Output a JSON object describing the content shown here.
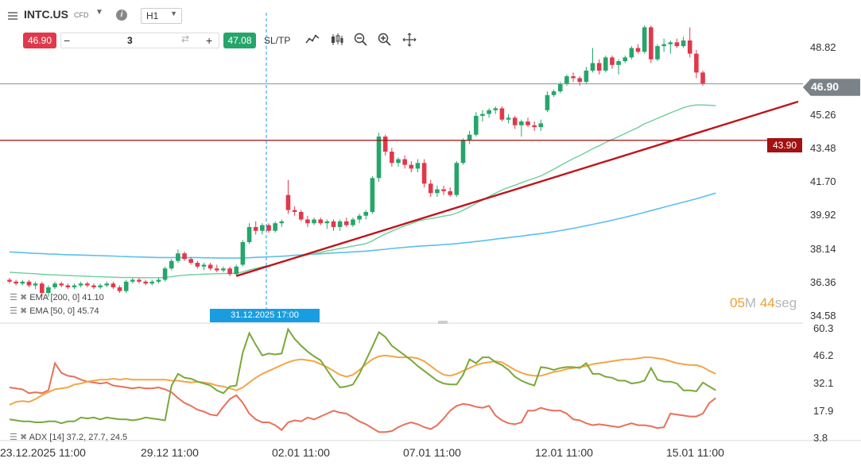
{
  "header": {
    "symbol": "INTC.US",
    "symbol_type": "CFD",
    "timeframe": "H1",
    "sell_price": "46.90",
    "quantity": "3",
    "buy_price": "47.08",
    "sltp_label": "SL/TP",
    "icons": [
      "line-chart-icon",
      "candlestick-icon",
      "zoom-out-icon",
      "zoom-in-icon",
      "crosshair-icon"
    ]
  },
  "timer": {
    "minutes": "05",
    "min_unit": "M",
    "seconds": "44",
    "sec_unit": "seg"
  },
  "price_axis": {
    "ticks": [
      "48.82",
      "45.26",
      "43.48",
      "41.70",
      "39.92",
      "38.14",
      "36.36",
      "34.58"
    ],
    "current_price": "46.90",
    "level_price": "43.90"
  },
  "indicator_axis": {
    "ticks": [
      "60.3",
      "46.2",
      "32.1",
      "17.9",
      "3.8"
    ]
  },
  "time_axis": {
    "ticks": [
      "23.12.2025 11:00",
      "29.12 11:00",
      "02.01 11:00",
      "07.01 11:00",
      "12.01 11:00",
      "15.01 11:00"
    ]
  },
  "crosshair_date": "31.12.2025 17:00",
  "legends": {
    "ema200": "EMA [200, 0] 41.10",
    "ema50": "EMA [50, 0] 45.74",
    "adx": "ADX [14] 37.2, 27.7, 24.5"
  },
  "colors": {
    "up": "#26a56a",
    "down": "#e0394b",
    "ema200": "#5bc0eb",
    "ema50": "#6ccf9a",
    "trendline": "#c0141c",
    "level": "#a31111",
    "adx": "#7aa83a",
    "di_plus": "#f2a646",
    "di_minus": "#e8705a",
    "accent_blue": "#1a9de0"
  },
  "chart_data": {
    "type": "candlestick",
    "ylim": [
      34.58,
      50.0
    ],
    "candles": [
      [
        36.5,
        36.6,
        36.3,
        36.4
      ],
      [
        36.4,
        36.5,
        36.2,
        36.3
      ],
      [
        36.3,
        36.5,
        36.2,
        36.4
      ],
      [
        36.4,
        36.5,
        36.1,
        36.2
      ],
      [
        36.2,
        36.4,
        36.0,
        36.3
      ],
      [
        36.3,
        36.4,
        35.6,
        35.8
      ],
      [
        35.8,
        36.2,
        35.6,
        36.1
      ],
      [
        36.1,
        36.4,
        36.0,
        36.3
      ],
      [
        36.3,
        36.4,
        36.1,
        36.2
      ],
      [
        36.2,
        36.3,
        36.0,
        36.1
      ],
      [
        36.1,
        36.3,
        36.0,
        36.2
      ],
      [
        36.2,
        36.4,
        36.1,
        36.3
      ],
      [
        36.3,
        36.4,
        36.1,
        36.2
      ],
      [
        36.2,
        36.3,
        36.0,
        36.1
      ],
      [
        36.1,
        36.3,
        36.0,
        36.2
      ],
      [
        36.2,
        36.4,
        36.1,
        36.3
      ],
      [
        36.3,
        36.4,
        36.0,
        36.1
      ],
      [
        36.1,
        36.2,
        35.8,
        35.9
      ],
      [
        35.9,
        36.5,
        35.8,
        36.4
      ],
      [
        36.4,
        36.6,
        36.3,
        36.5
      ],
      [
        36.5,
        36.6,
        36.3,
        36.4
      ],
      [
        36.4,
        36.5,
        36.2,
        36.3
      ],
      [
        36.3,
        36.5,
        36.2,
        36.4
      ],
      [
        36.4,
        36.6,
        36.3,
        36.5
      ],
      [
        36.5,
        37.2,
        36.4,
        37.1
      ],
      [
        37.1,
        37.6,
        37.0,
        37.5
      ],
      [
        37.5,
        38.1,
        37.4,
        37.9
      ],
      [
        37.9,
        38.0,
        37.5,
        37.6
      ],
      [
        37.6,
        37.7,
        37.3,
        37.4
      ],
      [
        37.4,
        37.5,
        37.1,
        37.2
      ],
      [
        37.2,
        37.4,
        37.0,
        37.3
      ],
      [
        37.3,
        37.4,
        37.0,
        37.1
      ],
      [
        37.1,
        37.3,
        36.9,
        37.0
      ],
      [
        37.0,
        37.2,
        36.9,
        37.1
      ],
      [
        37.1,
        37.2,
        36.7,
        36.8
      ],
      [
        36.8,
        37.3,
        36.7,
        37.2
      ],
      [
        37.3,
        38.6,
        37.2,
        38.5
      ],
      [
        38.5,
        39.5,
        38.4,
        39.3
      ],
      [
        39.3,
        39.6,
        38.9,
        39.1
      ],
      [
        39.1,
        39.5,
        38.9,
        39.4
      ],
      [
        39.4,
        39.5,
        39.0,
        39.1
      ],
      [
        39.1,
        39.6,
        39.0,
        39.5
      ],
      [
        39.5,
        39.7,
        39.3,
        39.6
      ],
      [
        41.0,
        41.8,
        40.0,
        40.2
      ],
      [
        40.2,
        40.4,
        39.9,
        40.1
      ],
      [
        40.1,
        40.2,
        39.6,
        39.7
      ],
      [
        39.7,
        39.9,
        39.3,
        39.5
      ],
      [
        39.5,
        39.8,
        39.4,
        39.7
      ],
      [
        39.7,
        39.8,
        39.4,
        39.5
      ],
      [
        39.5,
        39.7,
        39.2,
        39.6
      ],
      [
        39.6,
        39.7,
        39.1,
        39.3
      ],
      [
        39.3,
        39.7,
        39.1,
        39.6
      ],
      [
        39.6,
        39.8,
        39.3,
        39.4
      ],
      [
        39.4,
        39.8,
        39.3,
        39.7
      ],
      [
        39.7,
        40.0,
        39.5,
        39.9
      ],
      [
        39.9,
        40.2,
        39.7,
        40.1
      ],
      [
        40.1,
        42.0,
        40.0,
        41.9
      ],
      [
        41.9,
        44.3,
        41.7,
        44.1
      ],
      [
        44.1,
        44.2,
        43.1,
        43.3
      ],
      [
        43.3,
        43.5,
        42.5,
        42.7
      ],
      [
        42.7,
        43.0,
        42.5,
        42.9
      ],
      [
        42.9,
        43.1,
        42.4,
        42.6
      ],
      [
        42.6,
        42.8,
        42.2,
        42.4
      ],
      [
        42.4,
        42.9,
        42.2,
        42.7
      ],
      [
        42.7,
        42.9,
        41.4,
        41.6
      ],
      [
        41.6,
        41.8,
        40.9,
        41.1
      ],
      [
        41.1,
        41.5,
        40.9,
        41.3
      ],
      [
        41.3,
        41.5,
        41.0,
        41.2
      ],
      [
        41.2,
        41.4,
        40.9,
        41.0
      ],
      [
        41.0,
        42.8,
        40.9,
        42.7
      ],
      [
        42.7,
        44.0,
        42.6,
        43.9
      ],
      [
        43.9,
        44.4,
        43.7,
        44.2
      ],
      [
        44.2,
        45.4,
        44.1,
        45.2
      ],
      [
        45.2,
        45.5,
        44.9,
        45.3
      ],
      [
        45.3,
        45.6,
        45.1,
        45.5
      ],
      [
        45.5,
        45.7,
        45.3,
        45.6
      ],
      [
        45.6,
        45.7,
        44.9,
        45.0
      ],
      [
        45.0,
        45.3,
        44.8,
        45.1
      ],
      [
        45.1,
        45.2,
        44.5,
        44.7
      ],
      [
        44.7,
        45.0,
        44.1,
        44.9
      ],
      [
        44.9,
        45.1,
        44.6,
        44.7
      ],
      [
        44.7,
        44.9,
        44.4,
        44.6
      ],
      [
        44.6,
        45.0,
        44.4,
        44.8
      ],
      [
        45.5,
        46.5,
        45.4,
        46.3
      ],
      [
        46.3,
        46.6,
        46.2,
        46.5
      ],
      [
        46.5,
        47.0,
        46.4,
        46.9
      ],
      [
        46.9,
        47.4,
        46.8,
        47.3
      ],
      [
        47.3,
        47.5,
        47.0,
        47.2
      ],
      [
        47.2,
        47.3,
        46.8,
        47.0
      ],
      [
        47.0,
        47.8,
        46.9,
        47.6
      ],
      [
        47.6,
        48.8,
        47.5,
        48.0
      ],
      [
        48.0,
        48.2,
        47.4,
        47.6
      ],
      [
        47.6,
        48.4,
        47.5,
        48.3
      ],
      [
        48.3,
        48.4,
        47.7,
        47.9
      ],
      [
        47.9,
        48.2,
        47.4,
        48.1
      ],
      [
        48.1,
        48.4,
        48.0,
        48.3
      ],
      [
        48.3,
        48.9,
        48.2,
        48.8
      ],
      [
        48.8,
        49.0,
        48.5,
        48.6
      ],
      [
        48.6,
        50.0,
        48.5,
        49.9
      ],
      [
        49.9,
        50.0,
        48.0,
        48.2
      ],
      [
        48.2,
        49.0,
        48.1,
        48.9
      ],
      [
        48.9,
        49.3,
        48.6,
        49.0
      ],
      [
        49.0,
        49.2,
        48.5,
        49.1
      ],
      [
        49.1,
        49.3,
        48.8,
        48.9
      ],
      [
        48.9,
        49.4,
        48.8,
        49.2
      ],
      [
        49.2,
        49.9,
        48.3,
        48.5
      ],
      [
        48.5,
        48.7,
        47.2,
        47.5
      ],
      [
        47.5,
        47.6,
        46.8,
        46.9
      ]
    ],
    "ema200": [
      37.98,
      37.96,
      37.94,
      37.92,
      37.9,
      37.89,
      37.87,
      37.86,
      37.84,
      37.83,
      37.82,
      37.81,
      37.8,
      37.79,
      37.78,
      37.77,
      37.76,
      37.74,
      37.73,
      37.72,
      37.71,
      37.7,
      37.69,
      37.68,
      37.68,
      37.68,
      37.68,
      37.68,
      37.68,
      37.68,
      37.67,
      37.67,
      37.66,
      37.66,
      37.65,
      37.65,
      37.66,
      37.67,
      37.69,
      37.7,
      37.72,
      37.73,
      37.75,
      37.77,
      37.8,
      37.82,
      37.84,
      37.86,
      37.88,
      37.9,
      37.92,
      37.94,
      37.96,
      37.98,
      38.0,
      38.02,
      38.05,
      38.09,
      38.12,
      38.16,
      38.19,
      38.22,
      38.25,
      38.28,
      38.3,
      38.32,
      38.34,
      38.37,
      38.39,
      38.42,
      38.46,
      38.49,
      38.53,
      38.57,
      38.61,
      38.66,
      38.7,
      38.74,
      38.78,
      38.82,
      38.87,
      38.91,
      38.95,
      39.0,
      39.05,
      39.11,
      39.17,
      39.23,
      39.3,
      39.37,
      39.44,
      39.51,
      39.58,
      39.66,
      39.74,
      39.82,
      39.9,
      39.99,
      40.08,
      40.17,
      40.26,
      40.35,
      40.44,
      40.53,
      40.62,
      40.71,
      40.8,
      40.9,
      41.0,
      41.1
    ],
    "ema50": [
      36.9,
      36.88,
      36.86,
      36.84,
      36.82,
      36.79,
      36.77,
      36.76,
      36.74,
      36.73,
      36.71,
      36.7,
      36.69,
      36.67,
      36.66,
      36.65,
      36.64,
      36.62,
      36.62,
      36.62,
      36.61,
      36.61,
      36.61,
      36.61,
      36.63,
      36.66,
      36.71,
      36.74,
      36.77,
      36.78,
      36.8,
      36.81,
      36.82,
      36.83,
      36.83,
      36.85,
      36.92,
      37.02,
      37.1,
      37.19,
      37.26,
      37.35,
      37.44,
      37.55,
      37.65,
      37.74,
      37.81,
      37.89,
      37.96,
      38.03,
      38.09,
      38.16,
      38.22,
      38.29,
      38.35,
      38.42,
      38.56,
      38.76,
      38.93,
      39.08,
      39.23,
      39.36,
      39.48,
      39.61,
      39.69,
      39.75,
      39.81,
      39.88,
      39.93,
      40.04,
      40.19,
      40.36,
      40.55,
      40.73,
      40.92,
      41.1,
      41.26,
      41.4,
      41.52,
      41.65,
      41.78,
      41.89,
      42.01,
      42.19,
      42.37,
      42.56,
      42.75,
      42.93,
      43.09,
      43.27,
      43.46,
      43.61,
      43.79,
      43.94,
      44.1,
      44.26,
      44.43,
      44.58,
      44.78,
      44.92,
      45.07,
      45.21,
      45.36,
      45.49,
      45.63,
      45.73,
      45.78,
      45.78,
      45.76,
      45.74
    ],
    "trendline": {
      "start_index": 35,
      "start_price": 36.7,
      "end_index": 111,
      "end_price": 46.2
    },
    "level_line": 43.9,
    "adx_ylim": [
      3.8,
      60.3
    ],
    "adx": [
      13.5,
      13.0,
      12.5,
      12.5,
      12.0,
      12.0,
      12.5,
      12.5,
      11.5,
      12.5,
      12.5,
      14.5,
      14.0,
      14.5,
      13.5,
      14.5,
      14.0,
      13.5,
      13.5,
      13.0,
      13.5,
      14.5,
      14.0,
      13.5,
      13.0,
      31.0,
      37.0,
      35.0,
      34.5,
      33.0,
      32.0,
      31.0,
      28.5,
      27.0,
      30.5,
      31.0,
      48.0,
      58.0,
      52.0,
      46.5,
      47.5,
      47.0,
      47.5,
      60.0,
      55.0,
      51.5,
      48.5,
      46.0,
      44.0,
      39.0,
      34.0,
      30.0,
      30.5,
      31.5,
      37.0,
      44.0,
      51.0,
      58.5,
      56.0,
      51.5,
      49.0,
      46.5,
      44.0,
      41.0,
      38.5,
      36.0,
      33.5,
      32.0,
      31.5,
      31.5,
      36.5,
      44.5,
      42.5,
      45.5,
      45.5,
      43.0,
      41.5,
      39.0,
      35.5,
      33.5,
      32.0,
      31.0,
      40.5,
      40.0,
      39.0,
      40.0,
      40.5,
      40.5,
      40.0,
      42.5,
      37.0,
      37.0,
      35.5,
      35.0,
      33.5,
      33.5,
      32.0,
      32.5,
      33.5,
      40.0,
      34.0,
      33.0,
      33.0,
      32.0,
      28.5,
      28.5,
      28.0,
      32.5,
      30.5,
      28.5
    ],
    "di_plus": [
      21.0,
      22.5,
      23.0,
      22.5,
      24.0,
      26.0,
      27.5,
      29.0,
      29.5,
      30.0,
      31.5,
      32.0,
      33.0,
      33.5,
      34.0,
      34.0,
      34.5,
      34.0,
      34.5,
      34.0,
      34.0,
      34.0,
      34.0,
      34.0,
      34.0,
      33.5,
      33.5,
      33.0,
      32.5,
      33.0,
      32.5,
      32.0,
      31.0,
      30.5,
      29.5,
      28.5,
      30.0,
      32.5,
      35.0,
      37.0,
      38.5,
      40.0,
      41.5,
      43.0,
      44.0,
      44.5,
      44.0,
      43.5,
      42.0,
      40.5,
      38.5,
      36.5,
      35.5,
      36.5,
      39.0,
      42.0,
      44.5,
      46.0,
      46.5,
      46.0,
      45.5,
      45.5,
      45.5,
      45.0,
      43.5,
      41.0,
      38.5,
      36.5,
      36.0,
      37.0,
      38.5,
      40.0,
      41.5,
      42.5,
      43.0,
      43.5,
      43.0,
      41.0,
      39.0,
      37.5,
      36.5,
      36.0,
      36.0,
      37.0,
      38.0,
      38.5,
      39.5,
      40.0,
      40.5,
      41.0,
      42.0,
      42.5,
      43.0,
      43.5,
      44.0,
      44.5,
      44.5,
      45.0,
      45.5,
      45.5,
      45.0,
      44.5,
      43.5,
      42.5,
      42.0,
      41.5,
      41.5,
      40.5,
      38.5,
      37.0
    ],
    "di_minus": [
      30.0,
      29.5,
      29.0,
      27.0,
      27.5,
      27.0,
      28.5,
      42.5,
      37.5,
      36.0,
      35.5,
      34.0,
      33.0,
      32.5,
      32.0,
      32.5,
      31.0,
      30.5,
      30.0,
      29.5,
      30.0,
      29.5,
      29.5,
      30.0,
      29.0,
      27.5,
      24.5,
      22.0,
      20.5,
      18.5,
      17.5,
      16.0,
      15.5,
      20.0,
      24.0,
      26.0,
      22.0,
      16.5,
      13.5,
      12.0,
      12.0,
      10.5,
      8.0,
      12.0,
      13.0,
      12.5,
      14.5,
      13.5,
      15.0,
      16.5,
      18.0,
      17.0,
      16.5,
      14.5,
      12.5,
      11.0,
      9.0,
      7.0,
      7.0,
      7.5,
      9.5,
      11.0,
      12.0,
      11.0,
      9.5,
      8.5,
      10.5,
      14.0,
      18.0,
      20.5,
      21.5,
      21.0,
      20.0,
      19.5,
      20.5,
      15.5,
      13.0,
      11.5,
      11.0,
      12.0,
      18.0,
      18.0,
      19.5,
      18.5,
      18.0,
      18.0,
      16.5,
      13.5,
      13.0,
      11.5,
      10.5,
      11.0,
      10.5,
      10.0,
      9.5,
      10.5,
      11.5,
      10.5,
      10.5,
      10.0,
      9.0,
      9.5,
      16.5,
      16.0,
      15.5,
      15.0,
      15.0,
      16.5,
      22.0,
      24.5
    ]
  }
}
